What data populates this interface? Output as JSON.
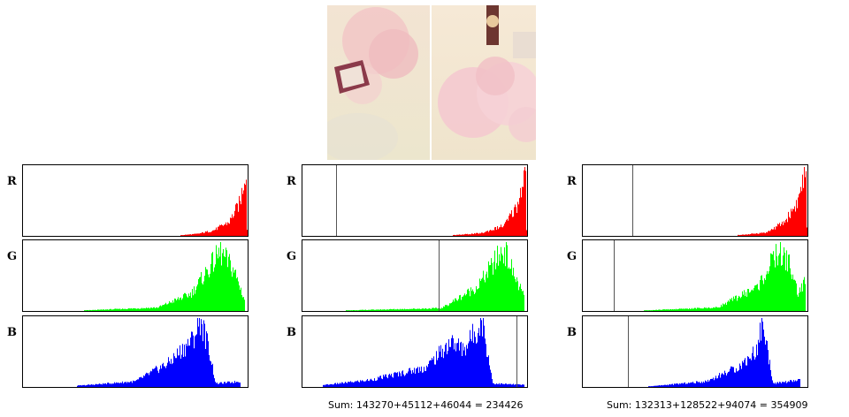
{
  "chart_data": [
    {
      "type": "histogram-group",
      "image_thumbnail": "pink-peonies-diptych",
      "channels": [
        {
          "label": "R",
          "color": "#ff0000",
          "peaks": [
            [
              0.71,
              0.012
            ],
            [
              0.78,
              0.03
            ],
            [
              0.85,
              0.08
            ],
            [
              0.92,
              0.2
            ],
            [
              0.97,
              0.5
            ],
            [
              0.995,
              1.0
            ],
            [
              1.0,
              0.1
            ]
          ]
        },
        {
          "label": "G",
          "color": "#00ff00",
          "peaks": [
            [
              0.28,
              0.01
            ],
            [
              0.6,
              0.05
            ],
            [
              0.75,
              0.25
            ],
            [
              0.88,
              0.85
            ],
            [
              0.94,
              0.6
            ],
            [
              0.99,
              0.15
            ]
          ]
        },
        {
          "label": "B",
          "color": "#0000ff",
          "peaks": [
            [
              0.25,
              0.02
            ],
            [
              0.5,
              0.08
            ],
            [
              0.65,
              0.35
            ],
            [
              0.76,
              0.7
            ],
            [
              0.79,
              1.0
            ],
            [
              0.83,
              0.55
            ],
            [
              0.86,
              0.05
            ],
            [
              0.97,
              0.08
            ]
          ]
        }
      ],
      "markers": [
        null,
        null,
        null
      ]
    },
    {
      "type": "histogram-group",
      "channels": [
        {
          "label": "R",
          "color": "#ff0000",
          "peaks": [
            [
              0.68,
              0.012
            ],
            [
              0.8,
              0.04
            ],
            [
              0.9,
              0.15
            ],
            [
              0.96,
              0.45
            ],
            [
              0.995,
              1.0
            ],
            [
              1.0,
              0.1
            ]
          ]
        },
        {
          "label": "G",
          "color": "#00ff00",
          "peaks": [
            [
              0.2,
              0.01
            ],
            [
              0.62,
              0.04
            ],
            [
              0.78,
              0.35
            ],
            [
              0.9,
              0.9
            ],
            [
              0.94,
              0.55
            ],
            [
              0.99,
              0.2
            ]
          ]
        },
        {
          "label": "B",
          "color": "#0000ff",
          "peaks": [
            [
              0.1,
              0.03
            ],
            [
              0.3,
              0.1
            ],
            [
              0.55,
              0.28
            ],
            [
              0.66,
              0.65
            ],
            [
              0.72,
              0.55
            ],
            [
              0.78,
              0.85
            ],
            [
              0.8,
              1.0
            ],
            [
              0.82,
              0.6
            ],
            [
              0.85,
              0.05
            ],
            [
              0.99,
              0.03
            ]
          ]
        }
      ],
      "markers": [
        0.15,
        0.61,
        0.955
      ],
      "sum_text": "Sum: 143270+45112+46044 = 234426"
    },
    {
      "type": "histogram-group",
      "channels": [
        {
          "label": "R",
          "color": "#ff0000",
          "peaks": [
            [
              0.7,
              0.012
            ],
            [
              0.82,
              0.05
            ],
            [
              0.9,
              0.2
            ],
            [
              0.96,
              0.5
            ],
            [
              0.995,
              1.0
            ],
            [
              1.0,
              0.1
            ]
          ]
        },
        {
          "label": "G",
          "color": "#00ff00",
          "peaks": [
            [
              0.28,
              0.01
            ],
            [
              0.6,
              0.05
            ],
            [
              0.78,
              0.35
            ],
            [
              0.87,
              0.85
            ],
            [
              0.92,
              0.7
            ],
            [
              0.96,
              0.25
            ],
            [
              0.995,
              0.45
            ]
          ]
        },
        {
          "label": "B",
          "color": "#0000ff",
          "peaks": [
            [
              0.3,
              0.01
            ],
            [
              0.55,
              0.08
            ],
            [
              0.7,
              0.3
            ],
            [
              0.78,
              0.55
            ],
            [
              0.8,
              1.0
            ],
            [
              0.82,
              0.6
            ],
            [
              0.85,
              0.05
            ],
            [
              0.97,
              0.1
            ]
          ]
        }
      ],
      "markers": [
        0.22,
        0.14,
        0.2
      ],
      "sum_text": "Sum: 132313+128522+94074 = 354909"
    }
  ]
}
